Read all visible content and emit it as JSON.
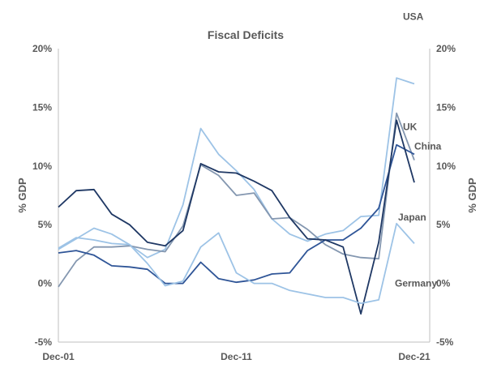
{
  "chart_data": {
    "type": "line",
    "title": "Fiscal Deficits",
    "ylabel_left": "% GDP",
    "ylabel_right": "% GDP",
    "x_tick_labels": [
      "Dec-01",
      "Dec-11",
      "Dec-21"
    ],
    "x": [
      "Dec-01",
      "Dec-02",
      "Dec-03",
      "Dec-04",
      "Dec-05",
      "Dec-06",
      "Dec-07",
      "Dec-08",
      "Dec-09",
      "Dec-10",
      "Dec-11",
      "Dec-12",
      "Dec-13",
      "Dec-14",
      "Dec-15",
      "Dec-16",
      "Dec-17",
      "Dec-18",
      "Dec-19",
      "Dec-20",
      "Dec-21"
    ],
    "ylim": [
      -5,
      20
    ],
    "y_ticks": [
      -5,
      0,
      5,
      10,
      15,
      20
    ],
    "y_tick_labels": [
      "-5%",
      "0%",
      "5%",
      "10%",
      "15%",
      "20%"
    ],
    "grid": false,
    "series": [
      {
        "name": "USA",
        "color": "#9dc3e6",
        "values": [
          3.0,
          3.9,
          3.7,
          3.4,
          3.3,
          2.2,
          2.9,
          6.7,
          13.2,
          11.0,
          9.6,
          8.0,
          5.5,
          4.2,
          3.6,
          4.2,
          4.5,
          5.7,
          5.8,
          17.5,
          17.0
        ]
      },
      {
        "name": "UK",
        "color": "#8497b0",
        "values": [
          -0.3,
          1.9,
          3.1,
          3.1,
          3.2,
          2.9,
          2.7,
          4.9,
          10.1,
          9.2,
          7.5,
          7.7,
          5.5,
          5.6,
          4.6,
          3.3,
          2.5,
          2.2,
          2.1,
          14.5,
          10.5
        ]
      },
      {
        "name": "China",
        "color": "#2f5597",
        "values": [
          2.6,
          2.8,
          2.4,
          1.5,
          1.4,
          1.2,
          0.0,
          0.0,
          1.8,
          0.4,
          0.1,
          0.3,
          0.8,
          0.9,
          2.8,
          3.7,
          3.7,
          4.7,
          6.4,
          11.8,
          11.0
        ]
      },
      {
        "name": "Japan",
        "color": "#1f3864",
        "values": [
          6.5,
          7.9,
          8.0,
          5.9,
          5.0,
          3.5,
          3.2,
          4.5,
          10.2,
          9.5,
          9.4,
          8.7,
          7.9,
          5.6,
          3.8,
          3.7,
          3.1,
          -2.6,
          3.5,
          13.9,
          8.6
        ]
      },
      {
        "name": "Germany",
        "color": "#9dc3e6",
        "values": [
          2.9,
          3.8,
          4.7,
          4.2,
          3.3,
          1.7,
          -0.2,
          0.2,
          3.1,
          4.3,
          0.9,
          0.0,
          0.0,
          -0.6,
          -0.9,
          -1.2,
          -1.2,
          -1.7,
          -1.4,
          5.1,
          3.4
        ]
      }
    ],
    "legend": "labels placed next to line ends"
  }
}
